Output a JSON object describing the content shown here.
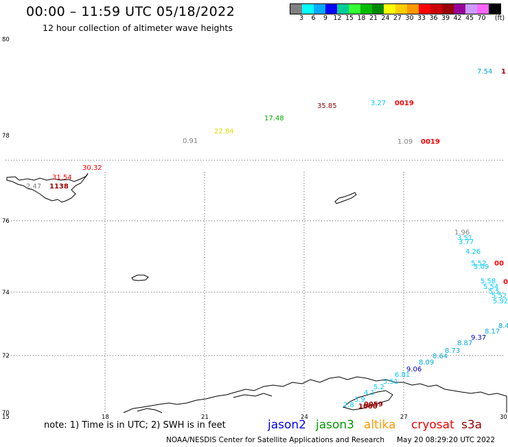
{
  "title": "00:00 – 11:59 UTC 05/18/2022",
  "subtitle": "12 hour collection of altimeter wave heights",
  "scale": {
    "unit_label": "(ft)",
    "colors": [
      "#808080",
      "#00ffff",
      "#00aaff",
      "#0000ff",
      "#00cc99",
      "#33ff33",
      "#00bb00",
      "#008800",
      "#ffff00",
      "#ffcc00",
      "#ff9900",
      "#ff0000",
      "#cc0000",
      "#990000",
      "#990099",
      "#cc99ff",
      "#ff66ff",
      "#000000"
    ],
    "labels": [
      "3",
      "6",
      "9",
      "12",
      "15",
      "18",
      "21",
      "24",
      "27",
      "30",
      "33",
      "36",
      "39",
      "42",
      "45",
      "70"
    ]
  },
  "axes": {
    "lat_labels": [
      "80",
      "78",
      "76",
      "74",
      "72",
      "70"
    ],
    "lon_labels": [
      "15",
      "18",
      "21",
      "24",
      "27",
      "30"
    ]
  },
  "markers": [
    {
      "text": "7.54",
      "color": "#00aadd"
    },
    {
      "text": "1",
      "color": "#990000"
    },
    {
      "text": "35.85",
      "color": "#990000"
    },
    {
      "text": "3.27",
      "color": "#00ccff"
    },
    {
      "text": "0019",
      "color": "#ff0000"
    },
    {
      "text": "17.48",
      "color": "#00aa00"
    },
    {
      "text": "22.84",
      "color": "#dddd00"
    },
    {
      "text": "0.91",
      "color": "#808080"
    },
    {
      "text": "1.09",
      "color": "#808080"
    },
    {
      "text": "0019",
      "color": "#ff0000"
    },
    {
      "text": "30.32",
      "color": "#ff0000"
    },
    {
      "text": "31.54",
      "color": "#ff0000"
    },
    {
      "text": "1138",
      "color": "#990000"
    },
    {
      "text": "2.47",
      "color": "#808080"
    },
    {
      "text": "1.96",
      "color": "#808080"
    },
    {
      "text": "3.51",
      "color": "#00ccff"
    },
    {
      "text": "3.77",
      "color": "#00ccff"
    },
    {
      "text": "4.26",
      "color": "#00ccff"
    },
    {
      "text": "00",
      "color": "#ff0000"
    },
    {
      "text": "5.52",
      "color": "#00ccff"
    },
    {
      "text": "5.09",
      "color": "#00ccff"
    },
    {
      "text": "5.58",
      "color": "#00ccff"
    },
    {
      "text": "0",
      "color": "#ff0000"
    },
    {
      "text": "5.54",
      "color": "#00ccff"
    },
    {
      "text": "5.5",
      "color": "#00ccff"
    },
    {
      "text": "5.52",
      "color": "#00ccff"
    },
    {
      "text": "5.92",
      "color": "#00ccff"
    },
    {
      "text": "8.4",
      "color": "#00aadd"
    },
    {
      "text": "8.17",
      "color": "#00aadd"
    },
    {
      "text": "9.37",
      "color": "#0000bb"
    },
    {
      "text": "8.87",
      "color": "#00aadd"
    },
    {
      "text": "8.73",
      "color": "#00aadd"
    },
    {
      "text": "8.64",
      "color": "#00aadd"
    },
    {
      "text": "8.09",
      "color": "#00aadd"
    },
    {
      "text": "9.06",
      "color": "#0000bb"
    },
    {
      "text": "6.81",
      "color": "#00ccff"
    },
    {
      "text": "5.51",
      "color": "#00ccff"
    },
    {
      "text": "5.2",
      "color": "#00ccff"
    },
    {
      "text": "4.1",
      "color": "#00ccff"
    },
    {
      "text": "3.9",
      "color": "#00ccff"
    },
    {
      "text": "2.8",
      "color": "#00ccff"
    },
    {
      "text": "0059",
      "color": "#990000"
    },
    {
      "text": "1000",
      "color": "#990000"
    }
  ],
  "note": "note:  1) Time is in UTC; 2) SWH is in feet",
  "satellites": [
    {
      "name": "jason2",
      "color": "#0000ee"
    },
    {
      "name": "jason3",
      "color": "#009900"
    },
    {
      "name": "altika",
      "color": "#ff9900"
    },
    {
      "name": "cryosat",
      "color": "#ee0000"
    },
    {
      "name": "s3a",
      "color": "#990000"
    }
  ],
  "footer": "NOAA/NESDIS Center for Satellite Applications and Research",
  "footer_date": "May 20 08:29:20 UTC 2022"
}
